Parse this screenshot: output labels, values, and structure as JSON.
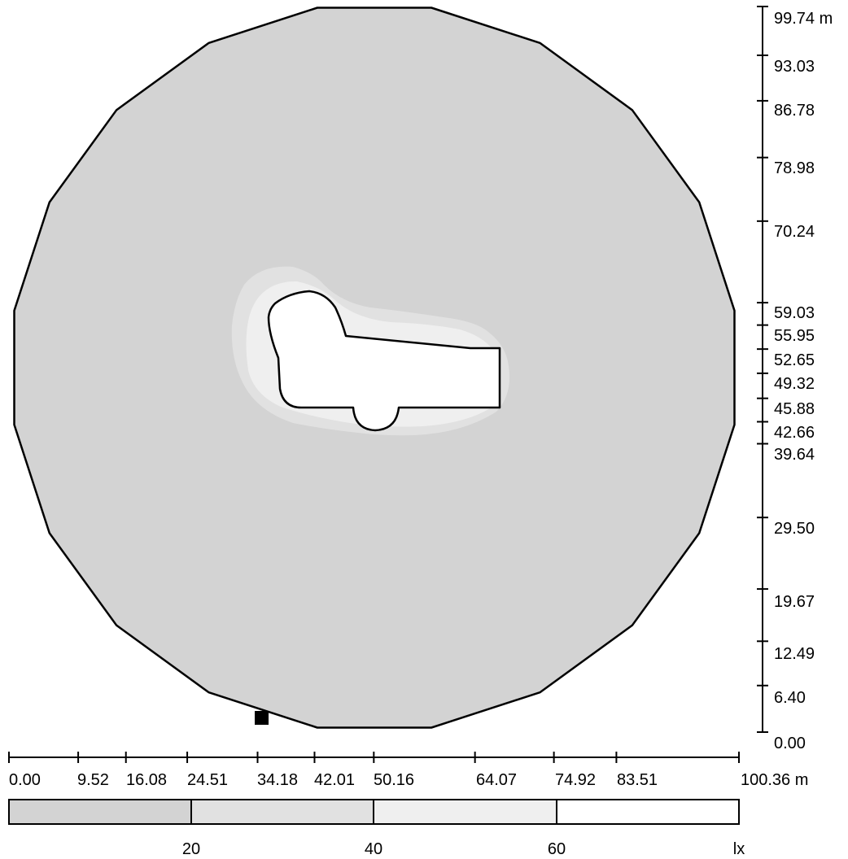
{
  "chart_data": {
    "type": "heatmap",
    "title": "",
    "x_axis": {
      "unit": "m",
      "range": [
        0.0,
        100.36
      ],
      "tick_labels": [
        "0.00",
        "9.52",
        "16.08",
        "24.51",
        "34.18",
        "42.01",
        "50.16",
        "64.07",
        "74.92",
        "83.51",
        "100.36 m"
      ]
    },
    "y_axis": {
      "unit": "m",
      "range": [
        0.0,
        99.74
      ],
      "tick_labels": [
        "99.74 m",
        "93.03",
        "86.78",
        "78.98",
        "70.24",
        "59.03",
        "55.95",
        "52.65",
        "49.32",
        "45.88",
        "42.66",
        "39.64",
        "29.50",
        "19.67",
        "12.49",
        "6.40",
        "0.00"
      ]
    },
    "legend": {
      "unit": "lx",
      "unit_label": "lx",
      "bins": [
        {
          "from": null,
          "to": 20,
          "color": "#d3d3d3"
        },
        {
          "from": 20,
          "to": 40,
          "color": "#e1e1e1"
        },
        {
          "from": 40,
          "to": 60,
          "color": "#efefef"
        },
        {
          "from": 60,
          "to": null,
          "color": "#ffffff"
        }
      ],
      "labels": [
        "20",
        "40",
        "60",
        "lx"
      ]
    },
    "grid": false,
    "legend_position": "bottom"
  }
}
